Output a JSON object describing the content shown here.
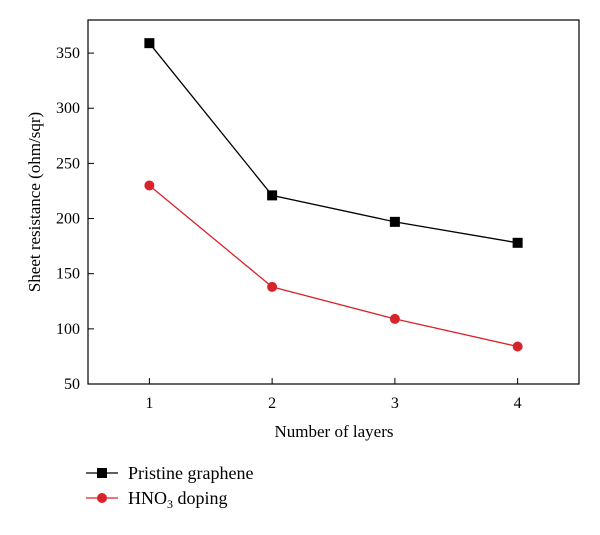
{
  "chart_data": {
    "type": "line",
    "title": "",
    "xlabel": "Number of layers",
    "ylabel": "Sheet resistance (ohm/sqr)",
    "x": [
      1,
      2,
      3,
      4
    ],
    "xlim": [
      0.5,
      4.5
    ],
    "ylim": [
      50,
      380
    ],
    "xticks": [
      1,
      2,
      3,
      4
    ],
    "yticks": [
      50,
      100,
      150,
      200,
      250,
      300,
      350
    ],
    "grid": false,
    "legend_position": "below-left",
    "series": [
      {
        "name": "Pristine graphene",
        "values": [
          359,
          221,
          197,
          178
        ],
        "color": "#000000",
        "marker": "square"
      },
      {
        "name": "HNO3 doping",
        "name_base": "HNO",
        "name_sub": "3",
        "name_rest": " doping",
        "values": [
          230,
          138,
          109,
          84
        ],
        "color": "#d9232a",
        "marker": "circle"
      }
    ]
  }
}
